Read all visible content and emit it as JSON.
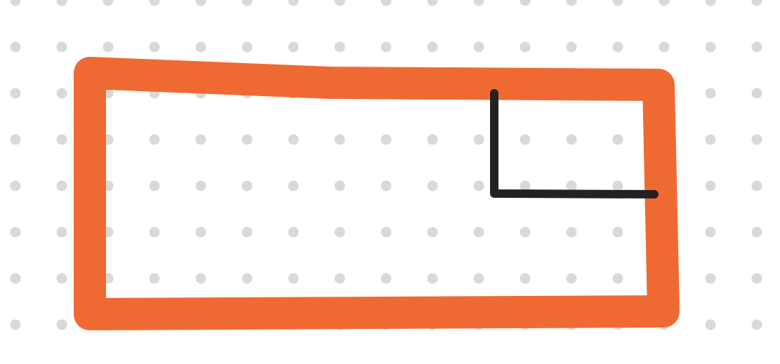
{
  "canvas": {
    "background": "#ffffff",
    "dot_color": "#d9d9d9"
  },
  "strokes": {
    "outline": {
      "color": "#ef6a33",
      "tool": "marker"
    },
    "corner": {
      "color": "#222222",
      "tool": "pen"
    }
  }
}
